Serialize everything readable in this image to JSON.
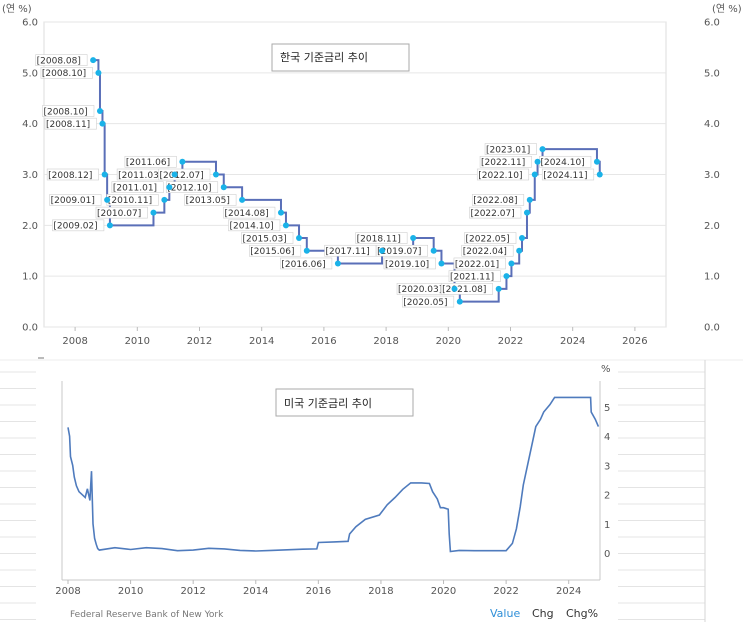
{
  "chart_data": [
    {
      "type": "line",
      "title": "한국 기준금리 추이",
      "ylabel": "(연 %)",
      "ylim": [
        0,
        6
      ],
      "xlim": [
        2007,
        2027
      ],
      "xticks": [
        2008,
        2010,
        2012,
        2014,
        2016,
        2018,
        2020,
        2022,
        2024,
        2026
      ],
      "yticks": [
        "0.0",
        "1.0",
        "2.0",
        "3.0",
        "4.0",
        "5.0",
        "6.0"
      ],
      "grid": true,
      "series": [
        {
          "points": [
            {
              "x": 2008.58,
              "y": 5.25,
              "label": "[2008.08]"
            },
            {
              "x": 2008.75,
              "y": 5.0,
              "label": "[2008.10]"
            },
            {
              "x": 2008.8,
              "y": 4.25,
              "label": "[2008.10]"
            },
            {
              "x": 2008.88,
              "y": 4.0,
              "label": "[2008.11]"
            },
            {
              "x": 2008.95,
              "y": 3.0,
              "label": "[2008.12]"
            },
            {
              "x": 2009.03,
              "y": 2.5,
              "label": "[2009.01]"
            },
            {
              "x": 2009.12,
              "y": 2.0,
              "label": "[2009.02]"
            },
            {
              "x": 2010.52,
              "y": 2.25,
              "label": "[2010.07]"
            },
            {
              "x": 2010.87,
              "y": 2.5,
              "label": "[2010.11]"
            },
            {
              "x": 2011.03,
              "y": 2.75,
              "label": "[2011.01]"
            },
            {
              "x": 2011.2,
              "y": 3.0,
              "label": "[2011.03]"
            },
            {
              "x": 2011.45,
              "y": 3.25,
              "label": "[2011.06]"
            },
            {
              "x": 2012.53,
              "y": 3.0,
              "label": "[2012.07]"
            },
            {
              "x": 2012.78,
              "y": 2.75,
              "label": "[2012.10]"
            },
            {
              "x": 2013.37,
              "y": 2.5,
              "label": "[2013.05]"
            },
            {
              "x": 2014.62,
              "y": 2.25,
              "label": "[2014.08]"
            },
            {
              "x": 2014.78,
              "y": 2.0,
              "label": "[2014.10]"
            },
            {
              "x": 2015.2,
              "y": 1.75,
              "label": "[2015.03]"
            },
            {
              "x": 2015.45,
              "y": 1.5,
              "label": "[2015.06]"
            },
            {
              "x": 2016.45,
              "y": 1.25,
              "label": "[2016.06]"
            },
            {
              "x": 2017.87,
              "y": 1.5,
              "label": "[2017.11]"
            },
            {
              "x": 2018.87,
              "y": 1.75,
              "label": "[2018.11]"
            },
            {
              "x": 2019.53,
              "y": 1.5,
              "label": "[2019.07]"
            },
            {
              "x": 2019.78,
              "y": 1.25,
              "label": "[2019.10]"
            },
            {
              "x": 2020.2,
              "y": 0.75,
              "label": "[2020.03]"
            },
            {
              "x": 2020.37,
              "y": 0.5,
              "label": "[2020.05]"
            },
            {
              "x": 2021.62,
              "y": 0.75,
              "label": "[2021.08]"
            },
            {
              "x": 2021.87,
              "y": 1.0,
              "label": "[2021.11]"
            },
            {
              "x": 2022.03,
              "y": 1.25,
              "label": "[2022.01]"
            },
            {
              "x": 2022.28,
              "y": 1.5,
              "label": "[2022.04]"
            },
            {
              "x": 2022.37,
              "y": 1.75,
              "label": "[2022.05]"
            },
            {
              "x": 2022.53,
              "y": 2.25,
              "label": "[2022.07]"
            },
            {
              "x": 2022.62,
              "y": 2.5,
              "label": "[2022.08]"
            },
            {
              "x": 2022.78,
              "y": 3.0,
              "label": "[2022.10]"
            },
            {
              "x": 2022.87,
              "y": 3.25,
              "label": "[2022.11]"
            },
            {
              "x": 2023.03,
              "y": 3.5,
              "label": "[2023.01]"
            },
            {
              "x": 2024.78,
              "y": 3.25,
              "label": "[2024.10]"
            },
            {
              "x": 2024.87,
              "y": 3.0,
              "label": "[2024.11]"
            }
          ]
        }
      ],
      "colors": {
        "line": "#5a6fb8",
        "marker": "#1ab2e8"
      }
    },
    {
      "type": "line",
      "title": "미국 기준금리 추이",
      "ylabel": "%",
      "ylim": [
        -0.5,
        6
      ],
      "xlim": [
        2008,
        2025
      ],
      "xticks": [
        2008,
        2010,
        2012,
        2014,
        2016,
        2018,
        2020,
        2022,
        2024
      ],
      "yticks": [
        "0",
        "1",
        "2",
        "3",
        "4",
        "5"
      ],
      "source": "Federal Reserve Bank of New York",
      "tabs": [
        "Value",
        "Chg",
        "Chg%"
      ],
      "active_tab": "Value",
      "series": [
        {
          "points": [
            [
              2008.0,
              4.3
            ],
            [
              2008.05,
              4.0
            ],
            [
              2008.08,
              3.3
            ],
            [
              2008.15,
              3.0
            ],
            [
              2008.2,
              2.6
            ],
            [
              2008.27,
              2.3
            ],
            [
              2008.35,
              2.1
            ],
            [
              2008.45,
              2.0
            ],
            [
              2008.55,
              1.9
            ],
            [
              2008.62,
              2.2
            ],
            [
              2008.7,
              1.8
            ],
            [
              2008.75,
              2.8
            ],
            [
              2008.8,
              1.0
            ],
            [
              2008.85,
              0.5
            ],
            [
              2008.9,
              0.3
            ],
            [
              2008.95,
              0.15
            ],
            [
              2009.0,
              0.1
            ],
            [
              2009.5,
              0.18
            ],
            [
              2010.0,
              0.12
            ],
            [
              2010.5,
              0.18
            ],
            [
              2011.0,
              0.15
            ],
            [
              2011.5,
              0.08
            ],
            [
              2012.0,
              0.1
            ],
            [
              2012.5,
              0.16
            ],
            [
              2013.0,
              0.14
            ],
            [
              2013.5,
              0.09
            ],
            [
              2014.0,
              0.07
            ],
            [
              2014.5,
              0.09
            ],
            [
              2015.0,
              0.11
            ],
            [
              2015.5,
              0.13
            ],
            [
              2015.95,
              0.14
            ],
            [
              2016.0,
              0.36
            ],
            [
              2016.5,
              0.38
            ],
            [
              2016.95,
              0.4
            ],
            [
              2017.0,
              0.65
            ],
            [
              2017.2,
              0.9
            ],
            [
              2017.5,
              1.15
            ],
            [
              2017.95,
              1.3
            ],
            [
              2018.2,
              1.65
            ],
            [
              2018.45,
              1.9
            ],
            [
              2018.7,
              2.18
            ],
            [
              2018.95,
              2.4
            ],
            [
              2019.3,
              2.4
            ],
            [
              2019.55,
              2.38
            ],
            [
              2019.65,
              2.1
            ],
            [
              2019.8,
              1.85
            ],
            [
              2019.9,
              1.55
            ],
            [
              2020.0,
              1.55
            ],
            [
              2020.15,
              1.5
            ],
            [
              2020.18,
              0.65
            ],
            [
              2020.22,
              0.05
            ],
            [
              2020.5,
              0.09
            ],
            [
              2021.0,
              0.08
            ],
            [
              2021.5,
              0.08
            ],
            [
              2022.0,
              0.08
            ],
            [
              2022.2,
              0.33
            ],
            [
              2022.33,
              0.83
            ],
            [
              2022.45,
              1.58
            ],
            [
              2022.55,
              2.33
            ],
            [
              2022.7,
              3.08
            ],
            [
              2022.85,
              3.83
            ],
            [
              2022.95,
              4.33
            ],
            [
              2023.1,
              4.58
            ],
            [
              2023.2,
              4.83
            ],
            [
              2023.4,
              5.08
            ],
            [
              2023.55,
              5.33
            ],
            [
              2024.7,
              5.33
            ],
            [
              2024.72,
              4.83
            ],
            [
              2024.85,
              4.58
            ],
            [
              2024.95,
              4.33
            ]
          ]
        }
      ],
      "colors": {
        "line": "#4f7bbd"
      }
    }
  ]
}
